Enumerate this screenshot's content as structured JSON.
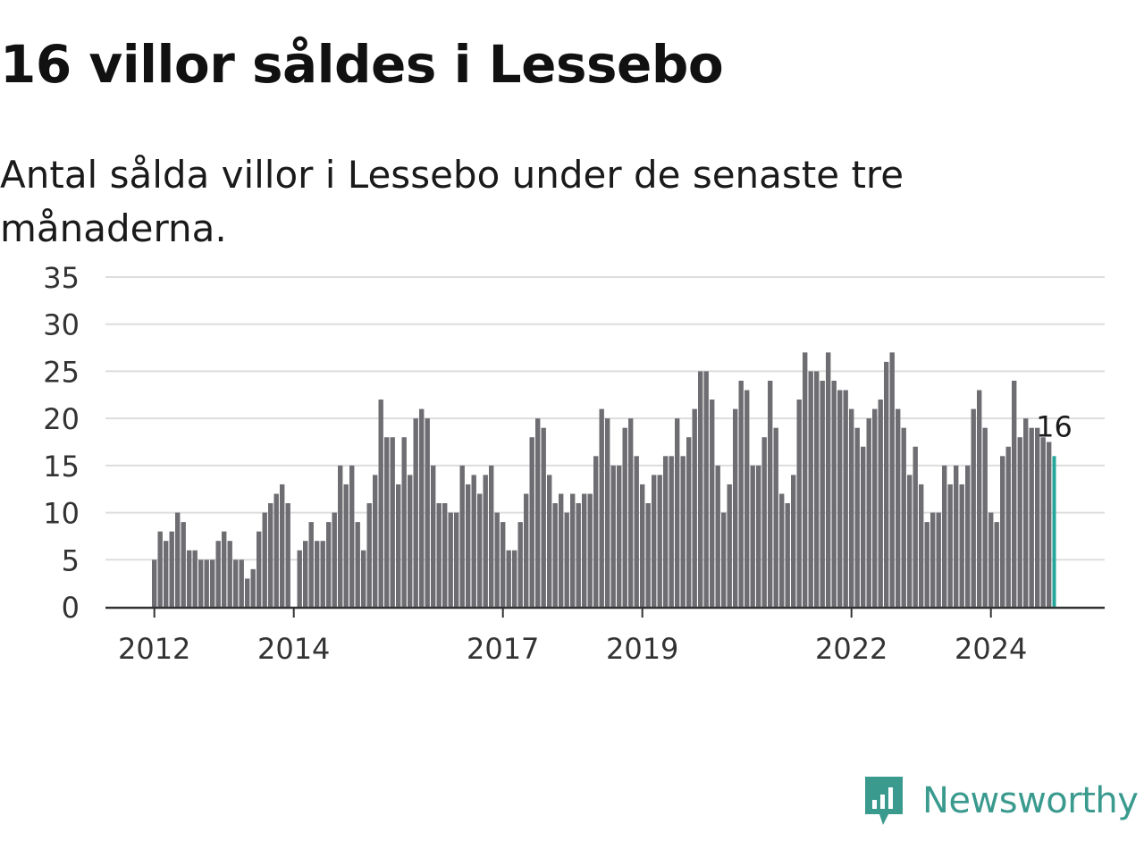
{
  "header": {
    "title": "16 villor såldes i Lessebo",
    "subtitle": "Antal sålda villor i Lessebo under de senaste tre månaderna."
  },
  "brand": {
    "name": "Newsworthy",
    "logo_icon": "bar-chart-speech-bubble-icon",
    "color": "#3a9a8e"
  },
  "colors": {
    "bar": "#6e6d72",
    "highlight": "#26a69a",
    "grid": "#dddddd",
    "axis": "#333333"
  },
  "chart_data": {
    "type": "bar",
    "title": "16 villor såldes i Lessebo",
    "subtitle": "Antal sålda villor i Lessebo under de senaste tre månaderna.",
    "xlabel": "",
    "ylabel": "",
    "ylim": [
      0,
      35
    ],
    "yticks": [
      0,
      5,
      10,
      15,
      20,
      25,
      30,
      35
    ],
    "grid": true,
    "start": "2012-01",
    "xticks": [
      {
        "label": "2012",
        "date": "2012-01"
      },
      {
        "label": "2014",
        "date": "2014-01"
      },
      {
        "label": "2017",
        "date": "2017-01"
      },
      {
        "label": "2019",
        "date": "2019-01"
      },
      {
        "label": "2022",
        "date": "2022-01"
      },
      {
        "label": "2024",
        "date": "2024-01"
      }
    ],
    "values": [
      5,
      8,
      7,
      8,
      10,
      9,
      6,
      6,
      5,
      5,
      5,
      7,
      8,
      7,
      5,
      5,
      3,
      4,
      8,
      10,
      11,
      12,
      13,
      11,
      0,
      6,
      7,
      9,
      7,
      7,
      9,
      10,
      15,
      13,
      15,
      9,
      6,
      11,
      14,
      22,
      18,
      18,
      13,
      18,
      14,
      20,
      21,
      20,
      15,
      11,
      11,
      10,
      10,
      15,
      13,
      14,
      12,
      14,
      15,
      10,
      9,
      6,
      6,
      9,
      12,
      18,
      20,
      19,
      14,
      11,
      12,
      10,
      12,
      11,
      12,
      12,
      16,
      21,
      20,
      15,
      15,
      19,
      20,
      16,
      13,
      11,
      14,
      14,
      16,
      16,
      20,
      16,
      18,
      21,
      25,
      25,
      22,
      15,
      10,
      13,
      21,
      24,
      23,
      15,
      15,
      18,
      24,
      19,
      12,
      11,
      14,
      22,
      27,
      25,
      25,
      24,
      27,
      24,
      23,
      23,
      21,
      19,
      17,
      20,
      21,
      22,
      26,
      27,
      21,
      19,
      14,
      17,
      13,
      9,
      10,
      10,
      15,
      13,
      15,
      13,
      15,
      21,
      23,
      19,
      10,
      9,
      16,
      17,
      24,
      18,
      20,
      19,
      19,
      18,
      17.5,
      16
    ],
    "highlight": {
      "index": 155,
      "value": 16,
      "label": "16"
    }
  }
}
